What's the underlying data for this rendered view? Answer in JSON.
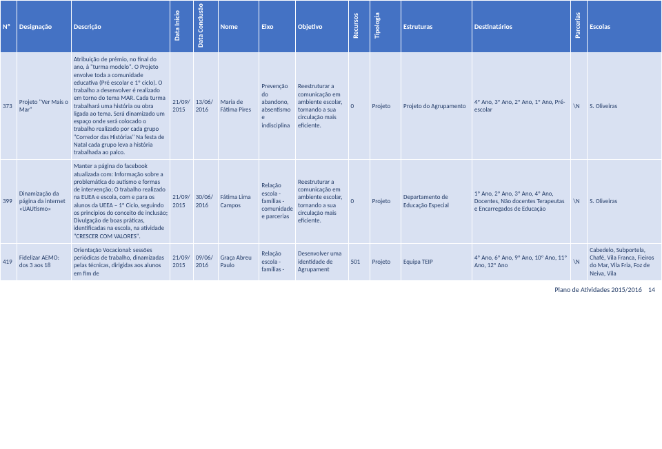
{
  "header": {
    "n": "Nº",
    "designacao": "Designação",
    "descricao": "Descrição",
    "dataInicio": "Data Inicio",
    "dataConclusao": "Data Conclusão",
    "nome": "Nome",
    "eixo": "Eixo",
    "objetivo": "Objetivo",
    "recursos": "Recursos",
    "tipologia": "Tipologia",
    "estruturas": "Estruturas",
    "destinatarios": "Destinatários",
    "parcerias": "Parcerias",
    "escolas": "Escolas"
  },
  "rows": [
    {
      "n": "373",
      "designacao": "Projeto \"Ver Mais o Mar\"",
      "descricao": "Atribuição de prémio, no final do ano, à \"turma modelo\". O Projeto envolve toda a comunidade educativa (Pré escolar e 1º ciclo). O trabalho a desenvolver é realizado em torno do tema MAR. Cada turma trabalhará uma história ou obra ligada ao tema. Será dinamizado um espaço onde será colocado o trabalho realizado por cada grupo \"Corredor das Histórias\" Na festa de Natal cada grupo leva a história trabalhada ao palco.",
      "dataInicio": "21/09/2015",
      "dataConclusao": "13/06/2016",
      "nome": "Maria de Fátima Pires",
      "eixo": "Prevenção do abandono, absentismo e indisciplina",
      "objetivo": "Reestruturar a comunicação em ambiente escolar, tornando a sua circulação mais eficiente.",
      "recursos": "0",
      "tipologia": "Projeto",
      "estruturas": "Projeto do Agrupamento",
      "destinatarios": "4º Ano, 3º Ano, 2º Ano, 1º Ano, Pré-escolar",
      "parcerias": "\\N",
      "escolas": "S. Oliveiras"
    },
    {
      "n": "399",
      "designacao": "Dinamização da página da internet «UAUtismo»",
      "descricao": "Manter a página do facebook atualizada com: Informação sobre a problemática do autismo e formas de intervenção; O trabalho realizado na EUEA e escola, com e para os alunos da UEEA – 1º Ciclo, seguindo os princípios do conceito de inclusão; Divulgação de boas práticas, identificadas na escola, na atividade \"CRESCER COM VALORES\".",
      "dataInicio": "21/09/2015",
      "dataConclusao": "30/06/2016",
      "nome": "Fátima Lima Campos",
      "eixo": "Relação escola - famílias - comunidade e parcerias",
      "objetivo": "Reestruturar a comunicação em ambiente escolar, tornando a sua circulação mais eficiente.",
      "recursos": "0",
      "tipologia": "Projeto",
      "estruturas": "Departamento de Educação Especial",
      "destinatarios": "1º Ano, 2º Ano, 3º Ano, 4º Ano, Docentes, Não docentes Terapeutas e Encarregados de Educação",
      "parcerias": "\\N",
      "escolas": "S. Oliveiras"
    },
    {
      "n": "419",
      "designacao": "Fidelizar AEMO: dos 3 aos 18",
      "descricao": "Orientação Vocacional: sessões periódicas de trabalho, dinamizadas pelas técnicas, dirigidas aos alunos em fim de",
      "dataInicio": "21/09/2015",
      "dataConclusao": "09/06/2016",
      "nome": "Graça Abreu Paulo",
      "eixo": "Relação escola - famílias -",
      "objetivo": "Desenvolver uma identidade de Agrupament",
      "recursos": "501",
      "tipologia": "Projeto",
      "estruturas": "Equipa TEIP",
      "destinatarios": "4º Ano, 6º Ano, 9º Ano, 10º Ano, 11º Ano, 12º Ano",
      "parcerias": "\\N",
      "escolas": "Cabedelo, Subportela, Chafé, Vila Franca, Fieiros do Mar, Vila Fria, Foz de Neiva, Vila"
    }
  ],
  "footer": {
    "label": "Plano de Atividades 2015/2016",
    "page": "14"
  }
}
